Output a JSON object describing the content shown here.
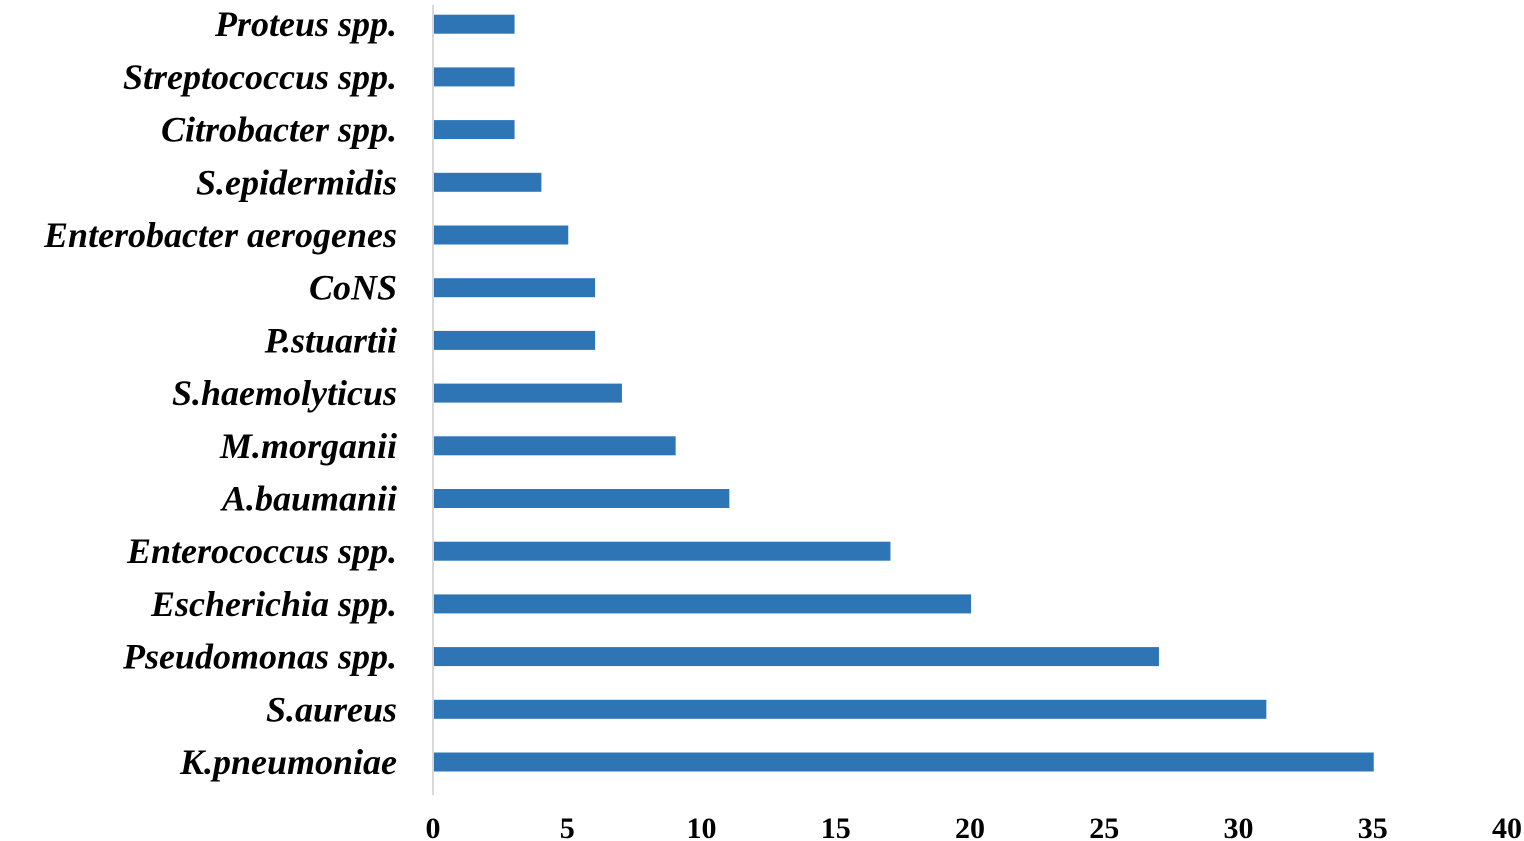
{
  "chart_data": {
    "type": "bar",
    "orientation": "horizontal",
    "categories": [
      "K.pneumoniae",
      "S.aureus",
      "Pseudomonas spp.",
      "Escherichia spp.",
      "Enterococcus spp.",
      "A.baumanii",
      "M.morganii",
      "S.haemolyticus",
      "P.stuartii",
      "CoNS",
      "Enterobacter aerogenes",
      "S.epidermidis",
      "Citrobacter spp.",
      "Streptococcus spp.",
      "Proteus spp."
    ],
    "values": [
      35,
      31,
      27,
      20,
      17,
      11,
      9,
      7,
      6,
      6,
      5,
      4,
      3,
      3,
      3
    ],
    "xlim": [
      0,
      40
    ],
    "xticks": [
      "0",
      "5",
      "10",
      "15",
      "20",
      "25",
      "30",
      "35",
      "40"
    ],
    "grid": false,
    "legend": "none",
    "colors": {
      "bar": "#2e75b6",
      "axis": "#d9d9d9"
    }
  }
}
